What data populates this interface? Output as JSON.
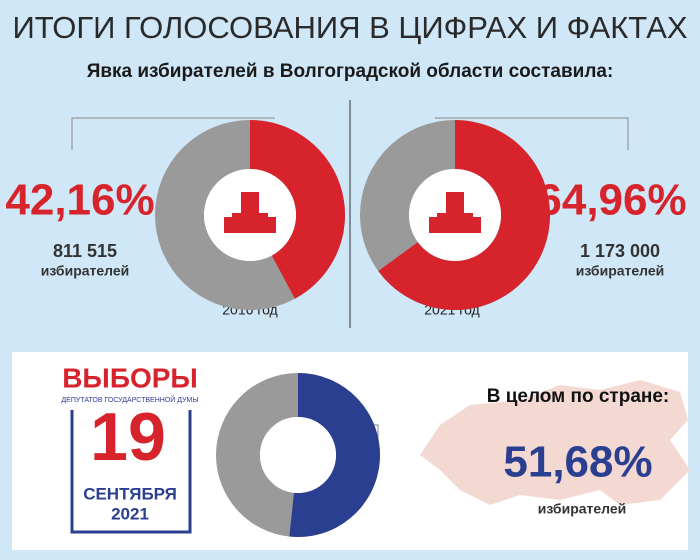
{
  "title": "ИТОГИ ГОЛОСОВАНИЯ В ЦИФРАХ И ФАКТАХ",
  "subtitle": "Явка избирателей в Волгоградской области составила:",
  "chart_data": [
    {
      "type": "donut",
      "categories": [
        "2016 год"
      ],
      "values": [
        42.16
      ],
      "value_labels": [
        "42,16%"
      ],
      "color": "#d7242c",
      "voters": "811 515",
      "voters_label": "избирателей"
    },
    {
      "type": "donut",
      "categories": [
        "2021 год"
      ],
      "values": [
        64.96
      ],
      "value_labels": [
        "64,96%"
      ],
      "color": "#d7242c",
      "voters": "1 173 000",
      "voters_label": "избирателей"
    },
    {
      "type": "donut",
      "title": "В целом по стране:",
      "values": [
        51.68
      ],
      "value_labels": [
        "51,68%"
      ],
      "color": "#2b3f91",
      "voters_label": "избирателей"
    }
  ],
  "election": {
    "title": "ВЫБОРЫ",
    "subtitle": "ДЕПУТАТОВ ГОСУДАРСТВЕННОЙ ДУМЫ",
    "day": "19",
    "month": "СЕНТЯБРЯ",
    "year": "2021"
  }
}
